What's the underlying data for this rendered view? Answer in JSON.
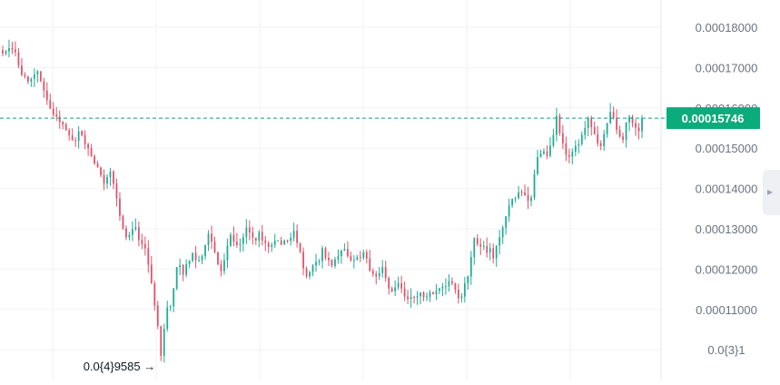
{
  "chart_data": {
    "type": "candlestick",
    "y_axis": {
      "ticks": [
        {
          "value": 0.00018,
          "label": "0.00018000"
        },
        {
          "value": 0.00017,
          "label": "0.00017000"
        },
        {
          "value": 0.00016,
          "label": "0.00016000"
        },
        {
          "value": 0.00015,
          "label": "0.00015000"
        },
        {
          "value": 0.00014,
          "label": "0.00014000"
        },
        {
          "value": 0.00013,
          "label": "0.00013000"
        },
        {
          "value": 0.00012,
          "label": "0.00012000"
        },
        {
          "value": 0.00011,
          "label": "0.00011000"
        },
        {
          "value": 0.0001,
          "label": "0.0{3}1"
        }
      ],
      "range": [
        9.55e-05,
        0.0001855
      ],
      "position": "right"
    },
    "current_price": {
      "value": 0.00015746,
      "label": "0.00015746"
    },
    "low_marker": {
      "value": 9.585e-05,
      "label": "0.0{4}9585",
      "arrow": "→"
    },
    "grid": true,
    "colors": {
      "up": "#22ab94",
      "down": "#e0526a",
      "price_label": "#0bab7c",
      "price_line": "#0e9f8c"
    },
    "closes": [
      0.0001735,
      0.000174,
      0.0001748,
      0.0001745,
      0.0001738,
      0.0001705,
      0.0001682,
      0.0001678,
      0.0001665,
      0.0001672,
      0.0001683,
      0.0001691,
      0.0001666,
      0.0001643,
      0.0001619,
      0.0001598,
      0.0001583,
      0.0001578,
      0.0001565,
      0.0001559,
      0.0001545,
      0.0001532,
      0.000152,
      0.0001518,
      0.0001542,
      0.0001532,
      0.000151,
      0.00015,
      0.000148,
      0.0001462,
      0.0001452,
      0.0001433,
      0.0001412,
      0.0001428,
      0.0001442,
      0.0001412,
      0.0001375,
      0.0001332,
      0.0001301,
      0.0001279,
      0.0001285,
      0.0001299,
      0.0001304,
      0.0001272,
      0.0001262,
      0.0001252,
      0.0001211,
      0.0001165,
      0.000111,
      0.0001059,
      9.85e-05,
      0.0001052,
      0.0001105,
      0.0001108,
      0.0001152,
      0.0001205,
      0.000121,
      0.0001186,
      0.0001212,
      0.0001221,
      0.000124,
      0.0001222,
      0.0001222,
      0.0001232,
      0.000126,
      0.0001288,
      0.0001268,
      0.0001242,
      0.0001212,
      0.0001195,
      0.0001222,
      0.0001258,
      0.0001285,
      0.0001268,
      0.000126,
      0.0001263,
      0.0001279,
      0.0001303,
      0.0001291,
      0.0001278,
      0.0001271,
      0.0001292,
      0.0001271,
      0.0001265,
      0.0001255,
      0.000126,
      0.0001271,
      0.0001271,
      0.0001261,
      0.0001271,
      0.000127,
      0.0001278,
      0.0001295,
      0.0001265,
      0.0001243,
      0.0001202,
      0.0001182,
      0.0001193,
      0.0001209,
      0.0001218,
      0.000122,
      0.0001252,
      0.0001228,
      0.0001222,
      0.0001208,
      0.0001224,
      0.0001232,
      0.0001246,
      0.000125,
      0.0001232,
      0.0001222,
      0.0001223,
      0.000123,
      0.0001228,
      0.0001242,
      0.0001226,
      0.0001196,
      0.0001188,
      0.0001182,
      0.000119,
      0.0001205,
      0.0001178,
      0.0001152,
      0.0001145,
      0.0001155,
      0.0001165,
      0.0001152,
      0.0001132,
      0.0001126,
      0.0001131,
      0.000113,
      0.0001133,
      0.0001142,
      0.000113,
      0.0001132,
      0.0001142,
      0.0001138,
      0.0001146,
      0.0001152,
      0.0001156,
      0.0001158,
      0.000117,
      0.0001165,
      0.0001149,
      0.0001128,
      0.0001132,
      0.0001165,
      0.0001182,
      0.000123,
      0.0001277,
      0.0001262,
      0.0001256,
      0.0001257,
      0.0001241,
      0.0001252,
      0.0001227,
      0.0001258,
      0.0001279,
      0.0001303,
      0.0001331,
      0.0001358,
      0.0001374,
      0.0001376,
      0.0001391,
      0.000139,
      0.0001384,
      0.0001369,
      0.0001377,
      0.0001436,
      0.0001478,
      0.0001487,
      0.0001492,
      0.0001481,
      0.0001506,
      0.0001533,
      0.000158,
      0.0001537,
      0.0001512,
      0.0001483,
      0.0001479,
      0.0001491,
      0.0001506,
      0.000151,
      0.0001533,
      0.000155,
      0.0001575,
      0.0001552,
      0.0001535,
      0.0001512,
      0.0001505,
      0.0001535,
      0.0001562,
      0.000159,
      0.0001575,
      0.0001545,
      0.0001529,
      0.0001521,
      0.0001564,
      0.0001578,
      0.0001562,
      0.0001551,
      0.0001542,
      0.0001574
    ]
  }
}
